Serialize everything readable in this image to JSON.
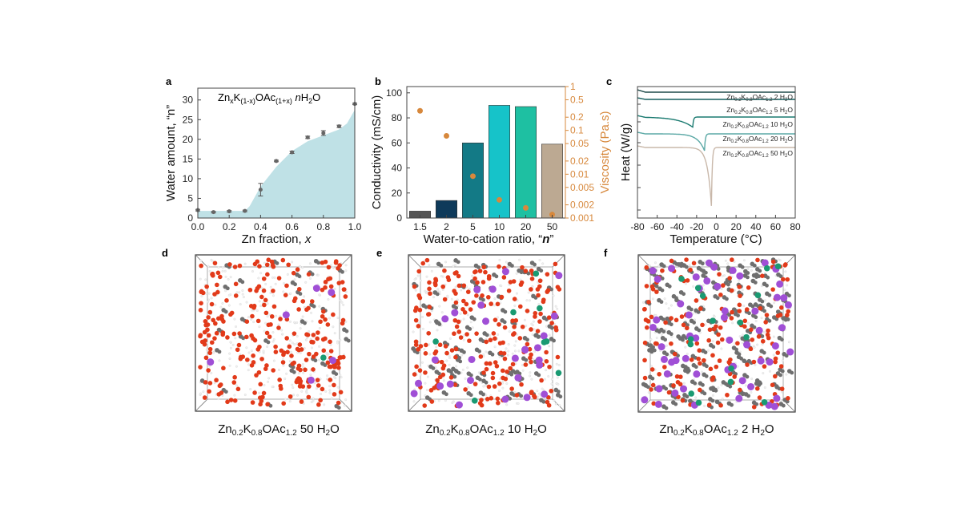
{
  "panel_labels": [
    "a",
    "b",
    "c",
    "d",
    "e",
    "f"
  ],
  "chart_data": [
    {
      "id": "a",
      "type": "area",
      "title": "ZnxK(1-x)OAc(1+x) nH2O",
      "title_parts": {
        "a": "Zn",
        "b": "x",
        "c": "K",
        "d": "(1-x)",
        "e": "OAc",
        "f": "(1+x)",
        "g": " n",
        "h": "H",
        "i": "2",
        "j": "O"
      },
      "xlabel": "Zn fraction, x",
      "xlabel_main": "Zn fraction, ",
      "xlabel_var": "x",
      "ylabel": "Water amount, “n”",
      "xlim": [
        0,
        1.0
      ],
      "ylim": [
        0,
        33
      ],
      "xticks": [
        "0.0",
        "0.2",
        "0.4",
        "0.6",
        "0.8",
        "1.0"
      ],
      "xtick_values": [
        0,
        0.2,
        0.4,
        0.6,
        0.8,
        1.0
      ],
      "yticks": [
        "0",
        "5",
        "10",
        "15",
        "20",
        "25",
        "30"
      ],
      "ytick_values": [
        0,
        5,
        10,
        15,
        20,
        25,
        30
      ],
      "area_x": [
        0,
        0.1,
        0.2,
        0.3,
        0.33,
        0.4,
        0.5,
        0.6,
        0.7,
        0.8,
        0.9,
        0.95,
        1.0
      ],
      "area_y": [
        1.8,
        1.8,
        1.8,
        1.8,
        3,
        8,
        13,
        17,
        19.5,
        21,
        22.5,
        24,
        27.5
      ],
      "points_x": [
        0,
        0.1,
        0.2,
        0.3,
        0.4,
        0.5,
        0.6,
        0.7,
        0.8,
        0.9,
        1.0
      ],
      "points_y": [
        2.0,
        1.5,
        1.7,
        1.8,
        7.2,
        14.5,
        16.7,
        20.5,
        21.6,
        23.3,
        29.0
      ],
      "errors": [
        0.2,
        0.2,
        0.2,
        0.2,
        1.6,
        0.2,
        0.3,
        0.3,
        0.6,
        0.3,
        0.2
      ],
      "fill_color": "#bfe1e6",
      "point_color": "#666666"
    },
    {
      "id": "b",
      "type": "bar",
      "categories": [
        "1.5",
        "2",
        "5",
        "10",
        "20",
        "50"
      ],
      "series": [
        {
          "name": "Conductivity (mS/cm)",
          "values": [
            5.5,
            14,
            60,
            90,
            89,
            59
          ]
        },
        {
          "name": "Viscosity (Pa.s)",
          "values": [
            0.28,
            0.075,
            0.009,
            0.0026,
            0.0017,
            0.0012
          ]
        }
      ],
      "bar_colors": [
        "#555555",
        "#0e3a5a",
        "#137a86",
        "#16c3c9",
        "#1ec0a2",
        "#bca992"
      ],
      "xlabel": "Water-to-cation ratio, “n”",
      "xlabel_main": "Water-to-cation ratio, “",
      "xlabel_var": "n",
      "xlabel_end": "”",
      "ylabel": "Conductivity (mS/cm)",
      "ylabel_right": "Viscosity (Pa.s)",
      "ylim": [
        0,
        105
      ],
      "yticks": [
        "0",
        "20",
        "40",
        "60",
        "80",
        "100"
      ],
      "ytick_values": [
        0,
        20,
        40,
        60,
        80,
        100
      ],
      "ylim_right": [
        0.001,
        1
      ],
      "yscale_right": "log",
      "yticks_right": [
        "1",
        "0.5",
        "0.2",
        "0.1",
        "0.05",
        "0.02",
        "0.01",
        "0.005",
        "0.002",
        "0.001"
      ],
      "ytick_right_values": [
        1,
        0.5,
        0.2,
        0.1,
        0.05,
        0.02,
        0.01,
        0.005,
        0.002,
        0.001
      ],
      "viscosity_color": "#d7883c"
    },
    {
      "id": "c",
      "type": "line",
      "xlabel": "Temperature (°C)",
      "ylabel": "Heat (W/g)",
      "xlim": [
        -80,
        80
      ],
      "xticks": [
        "-80",
        "-60",
        "-40",
        "-20",
        "0",
        "20",
        "40",
        "60",
        "80"
      ],
      "xtick_values": [
        -80,
        -60,
        -40,
        -20,
        0,
        20,
        40,
        60,
        80
      ],
      "series": [
        {
          "name": "Zn0.2K0.8OAc1.2 2 H2O",
          "water": "2",
          "color": "#1f4a4a",
          "baseline": 0,
          "peak_T": null,
          "peak_depth": 0
        },
        {
          "name": "Zn0.2K0.8OAc1.2 5 H2O",
          "water": "5",
          "color": "#155e5e",
          "baseline": 1,
          "peak_T": null,
          "peak_depth": 0
        },
        {
          "name": "Zn0.2K0.8OAc1.2 10 H2O",
          "water": "10",
          "color": "#1a7a70",
          "baseline": 2,
          "peak_T": -24,
          "peak_depth": 0.9
        },
        {
          "name": "Zn0.2K0.8OAc1.2 20 H2O",
          "water": "20",
          "color": "#5aa8a5",
          "baseline": 3,
          "peak_T": -12,
          "peak_depth": 1.5
        },
        {
          "name": "Zn0.2K0.8OAc1.2 50 H2O",
          "water": "50",
          "color": "#c9b8aa",
          "baseline": 4,
          "peak_T": -5,
          "peak_depth": 5.2
        }
      ],
      "legend_parts": {
        "zn": "Zn",
        "zn_sub": "0.2",
        "k": "K",
        "k_sub": "0.8",
        "oac": "OAc",
        "oac_sub": "1.2",
        "h": "H",
        "h_sub": "2",
        "o": "O"
      }
    }
  ],
  "simulations": [
    {
      "id": "d",
      "caption_parts": {
        "zn": "Zn",
        "zn_sub": "0.2",
        "k": "K",
        "k_sub": "0.8",
        "oac": "OAc",
        "oac_sub": "1.2",
        "n": " 50 ",
        "h": "H",
        "h_sub": "2",
        "o": "O"
      },
      "water": "50"
    },
    {
      "id": "e",
      "caption_parts": {
        "zn": "Zn",
        "zn_sub": "0.2",
        "k": "K",
        "k_sub": "0.8",
        "oac": "OAc",
        "oac_sub": "1.2",
        "n": " 10 ",
        "h": "H",
        "h_sub": "2",
        "o": "O"
      },
      "water": "10"
    },
    {
      "id": "f",
      "caption_parts": {
        "zn": "Zn",
        "zn_sub": "0.2",
        "k": "K",
        "k_sub": "0.8",
        "oac": "OAc",
        "oac_sub": "1.2",
        "n": " 2 ",
        "h": "H",
        "h_sub": "2",
        "o": "O"
      },
      "water": "2"
    }
  ],
  "atom_colors": {
    "oxygen": "#e23a1a",
    "hydrogen": "#f0f0f0",
    "carbon": "#6f6f6f",
    "potassium": "#a04fd6",
    "zinc": "#1a9a72"
  }
}
